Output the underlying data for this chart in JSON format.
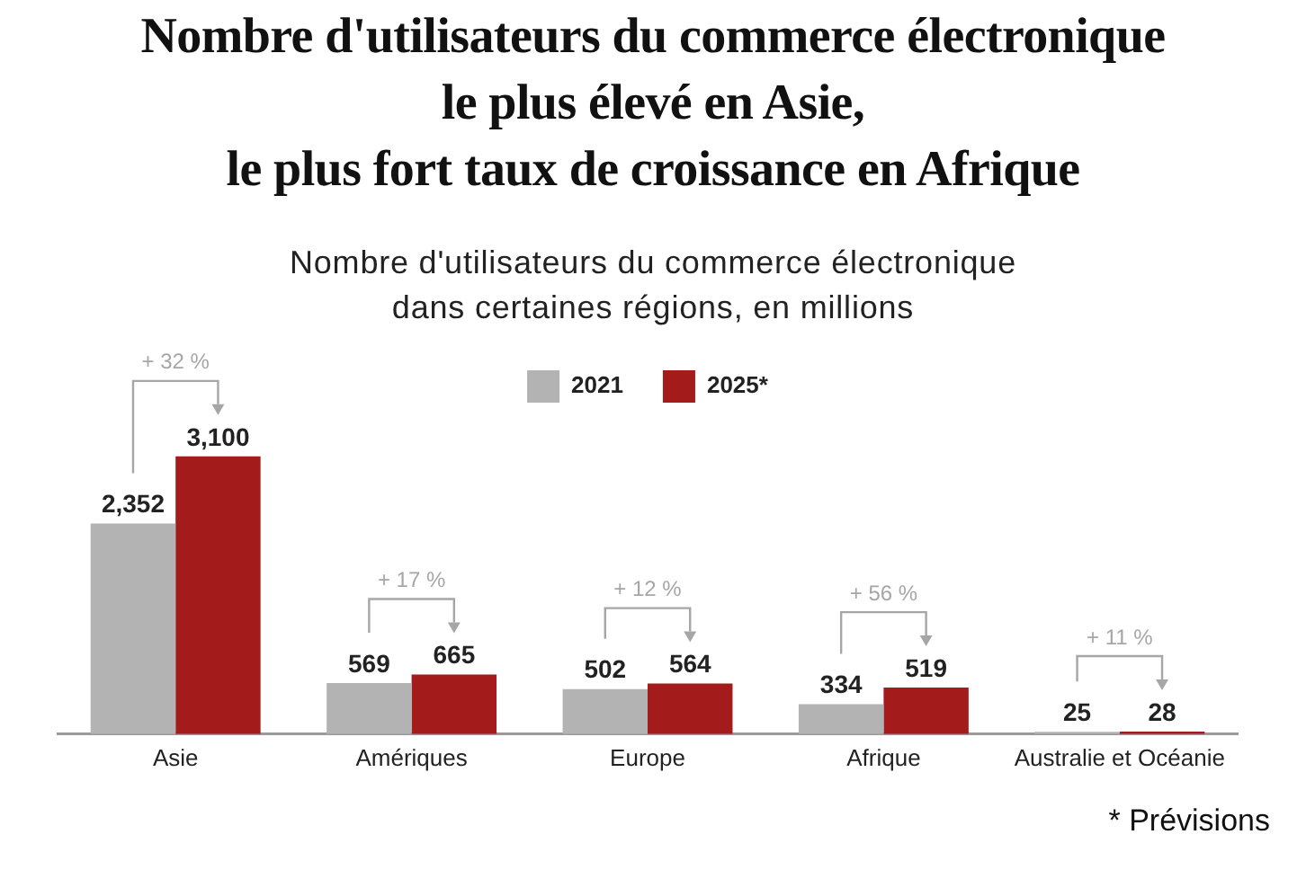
{
  "chart_data": {
    "type": "bar",
    "title": "Nombre d'utilisateurs du commerce électronique\nle plus élevé en Asie,\nle plus fort taux de croissance en Afrique",
    "subtitle": "Nombre d'utilisateurs du commerce électronique\ndans certaines régions, en millions",
    "categories": [
      "Asie",
      "Amériques",
      "Europe",
      "Afrique",
      "Australie et Océanie"
    ],
    "series": [
      {
        "name": "2021",
        "color": "#b3b3b3",
        "values": [
          2352,
          569,
          502,
          334,
          25
        ],
        "value_labels": [
          "2,352",
          "569",
          "502",
          "334",
          "25"
        ]
      },
      {
        "name": "2025*",
        "color": "#a31b1b",
        "values": [
          3100,
          665,
          564,
          519,
          28
        ],
        "value_labels": [
          "3,100",
          "665",
          "564",
          "519",
          "28"
        ]
      }
    ],
    "legend": "top",
    "annotations": [
      "+ 32 %",
      "+ 17 %",
      "+ 12 %",
      "+ 56 %",
      "+ 11 %",
      "* Prévisions"
    ]
  }
}
